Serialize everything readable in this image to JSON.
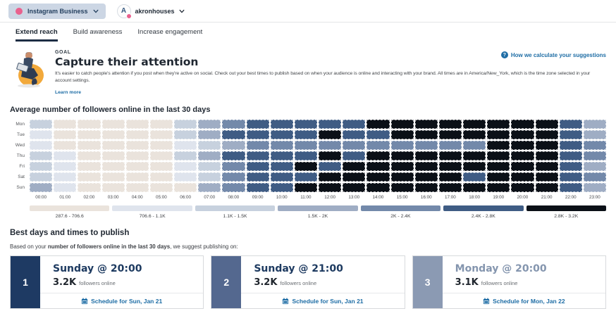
{
  "topbar": {
    "network_label": "Instagram Business",
    "account_initial": "A",
    "account_name": "akronhouses"
  },
  "tabs": [
    {
      "label": "Extend reach",
      "active": true
    },
    {
      "label": "Build awareness",
      "active": false
    },
    {
      "label": "Increase engagement",
      "active": false
    }
  ],
  "goal": {
    "eyebrow": "GOAL",
    "title": "Capture their attention",
    "description": "It's easier to catch people's attention if you post when they're active on social. Check out your best times to publish based on when your audience is online and interacting with your brand. All times are in America/New_York, which is the time zone selected in your account settings.",
    "learn_more": "Learn more",
    "help_link": "How we calculate your suggestions"
  },
  "chart_data": {
    "type": "heatmap",
    "title": "Average number of followers online in the last 30 days",
    "rows": [
      "Mon",
      "Tue",
      "Wed",
      "Thu",
      "Fri",
      "Sat",
      "Sun"
    ],
    "columns": [
      "00:00",
      "01:00",
      "02:00",
      "03:00",
      "04:00",
      "05:00",
      "06:00",
      "07:00",
      "08:00",
      "09:00",
      "10:00",
      "11:00",
      "12:00",
      "13:00",
      "14:00",
      "15:00",
      "16:00",
      "17:00",
      "18:00",
      "19:00",
      "20:00",
      "21:00",
      "22:00",
      "23:00"
    ],
    "levels": [
      {
        "label": "287.6 - 706.6",
        "color": "#eae3dc"
      },
      {
        "label": "706.6 - 1.1K",
        "color": "#dfe4ed"
      },
      {
        "label": "1.1K - 1.5K",
        "color": "#c7d1de"
      },
      {
        "label": "1.5K - 2K",
        "color": "#9fadc4"
      },
      {
        "label": "2K - 2.4K",
        "color": "#7389aa"
      },
      {
        "label": "2.4K - 2.8K",
        "color": "#3f5c84"
      },
      {
        "label": "2.8K - 3.2K",
        "color": "#0b1017"
      }
    ],
    "grid": [
      [
        2,
        0,
        0,
        0,
        0,
        0,
        2,
        3,
        4,
        5,
        5,
        5,
        5,
        5,
        6,
        6,
        6,
        6,
        6,
        6,
        6,
        6,
        5,
        3
      ],
      [
        1,
        0,
        0,
        0,
        0,
        0,
        2,
        3,
        5,
        5,
        5,
        5,
        6,
        5,
        5,
        6,
        6,
        6,
        6,
        6,
        6,
        6,
        5,
        3
      ],
      [
        1,
        0,
        0,
        0,
        0,
        0,
        1,
        2,
        3,
        4,
        4,
        4,
        4,
        4,
        4,
        4,
        4,
        4,
        4,
        6,
        6,
        6,
        5,
        4
      ],
      [
        2,
        1,
        0,
        0,
        0,
        0,
        2,
        3,
        5,
        5,
        5,
        5,
        6,
        5,
        6,
        6,
        6,
        6,
        6,
        6,
        6,
        6,
        5,
        4
      ],
      [
        2,
        1,
        0,
        0,
        0,
        0,
        1,
        2,
        4,
        5,
        5,
        6,
        5,
        6,
        6,
        6,
        6,
        6,
        6,
        6,
        6,
        6,
        5,
        3
      ],
      [
        2,
        1,
        0,
        0,
        0,
        0,
        1,
        2,
        4,
        5,
        5,
        5,
        6,
        6,
        6,
        6,
        6,
        6,
        5,
        6,
        6,
        6,
        5,
        4
      ],
      [
        3,
        1,
        0,
        0,
        0,
        0,
        0,
        3,
        4,
        5,
        5,
        6,
        6,
        6,
        6,
        6,
        6,
        6,
        6,
        6,
        6,
        6,
        5,
        3
      ]
    ]
  },
  "best_times": {
    "title": "Best days and times to publish",
    "intro_prefix": "Based on your ",
    "intro_bold": "number of followers online in the last 30 days",
    "intro_suffix": ", we suggest publishing on:",
    "cards": [
      {
        "rank": "1",
        "title": "Sunday @ 20:00",
        "value": "3.2K",
        "value_suffix": "followers online",
        "cta": "Schedule for Sun, Jan 21",
        "panel_color": "#1e3a63",
        "title_color": "#1d3a60"
      },
      {
        "rank": "2",
        "title": "Sunday @ 21:00",
        "value": "3.2K",
        "value_suffix": "followers online",
        "cta": "Schedule for Sun, Jan 21",
        "panel_color": "#54688f",
        "title_color": "#1d3a60"
      },
      {
        "rank": "3",
        "title": "Monday @ 20:00",
        "value": "3.1K",
        "value_suffix": "followers online",
        "cta": "Schedule for Mon, Jan 22",
        "panel_color": "#8b9ab3",
        "title_color": "#8495ae"
      }
    ]
  }
}
